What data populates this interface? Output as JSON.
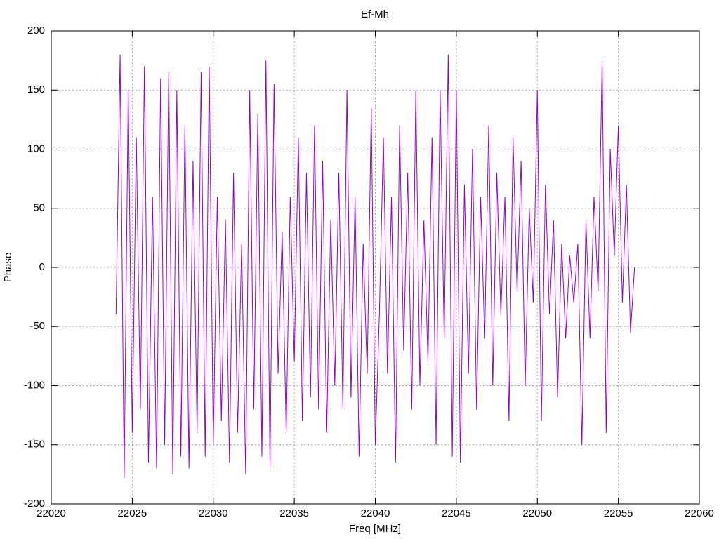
{
  "chart_data": {
    "type": "line",
    "title": "Ef-Mh",
    "xlabel": "Freq [MHz]",
    "ylabel": "Phase",
    "xlim": [
      22020,
      22060
    ],
    "xticks": [
      22020,
      22025,
      22030,
      22035,
      22040,
      22045,
      22050,
      22055,
      22060
    ],
    "ylim": [
      -200,
      200
    ],
    "yticks": [
      -200,
      -150,
      -100,
      -50,
      0,
      50,
      100,
      150,
      200
    ],
    "grid": true,
    "color": "#9400d3",
    "x": [
      22024,
      22024.25,
      22024.5,
      22024.75,
      22025,
      22025.25,
      22025.5,
      22025.75,
      22026,
      22026.25,
      22026.5,
      22026.75,
      22027,
      22027.25,
      22027.5,
      22027.75,
      22028,
      22028.25,
      22028.5,
      22028.75,
      22029,
      22029.25,
      22029.5,
      22029.75,
      22030,
      22030.25,
      22030.5,
      22030.75,
      22031,
      22031.25,
      22031.5,
      22031.75,
      22032,
      22032.25,
      22032.5,
      22032.75,
      22033,
      22033.25,
      22033.5,
      22033.75,
      22034,
      22034.25,
      22034.5,
      22034.75,
      22035,
      22035.25,
      22035.5,
      22035.75,
      22036,
      22036.25,
      22036.5,
      22036.75,
      22037,
      22037.25,
      22037.5,
      22037.75,
      22038,
      22038.25,
      22038.5,
      22038.75,
      22039,
      22039.25,
      22039.5,
      22039.75,
      22040,
      22040.25,
      22040.5,
      22040.75,
      22041,
      22041.25,
      22041.5,
      22041.75,
      22042,
      22042.25,
      22042.5,
      22042.75,
      22043,
      22043.25,
      22043.5,
      22043.75,
      22044,
      22044.25,
      22044.5,
      22044.75,
      22045,
      22045.25,
      22045.5,
      22045.75,
      22046,
      22046.25,
      22046.5,
      22046.75,
      22047,
      22047.25,
      22047.5,
      22047.75,
      22048,
      22048.25,
      22048.5,
      22048.75,
      22049,
      22049.25,
      22049.5,
      22049.75,
      22050,
      22050.25,
      22050.5,
      22050.75,
      22051,
      22051.25,
      22051.5,
      22051.75,
      22052,
      22052.25,
      22052.5,
      22052.75,
      22053,
      22053.25,
      22053.5,
      22053.75,
      22054,
      22054.25,
      22054.5,
      22054.75,
      22055,
      22055.25,
      22055.5,
      22055.75,
      22056
    ],
    "values": [
      -40,
      180,
      -178,
      150,
      -140,
      110,
      -120,
      170,
      -165,
      60,
      -170,
      160,
      -150,
      165,
      -175,
      150,
      -160,
      120,
      -170,
      90,
      -140,
      165,
      -160,
      170,
      -150,
      60,
      -130,
      40,
      -165,
      80,
      -140,
      20,
      -175,
      150,
      -120,
      130,
      -160,
      175,
      -170,
      155,
      -90,
      30,
      -140,
      60,
      -80,
      110,
      -130,
      80,
      -110,
      120,
      -120,
      90,
      -140,
      40,
      -100,
      80,
      -120,
      150,
      -110,
      60,
      -160,
      20,
      -90,
      135,
      -150,
      -40,
      110,
      -90,
      60,
      -165,
      120,
      -70,
      80,
      -120,
      150,
      -100,
      40,
      -80,
      110,
      -150,
      150,
      -60,
      180,
      -160,
      150,
      -165,
      70,
      -90,
      100,
      -120,
      60,
      -60,
      120,
      -100,
      80,
      -40,
      60,
      -130,
      110,
      -20,
      90,
      -100,
      50,
      -30,
      150,
      -130,
      70,
      -40,
      40,
      -110,
      20,
      -60,
      10,
      -30,
      20,
      -150,
      40,
      -60,
      60,
      -20,
      175,
      -140,
      100,
      10,
      120,
      -30,
      70,
      -55,
      0
    ]
  }
}
